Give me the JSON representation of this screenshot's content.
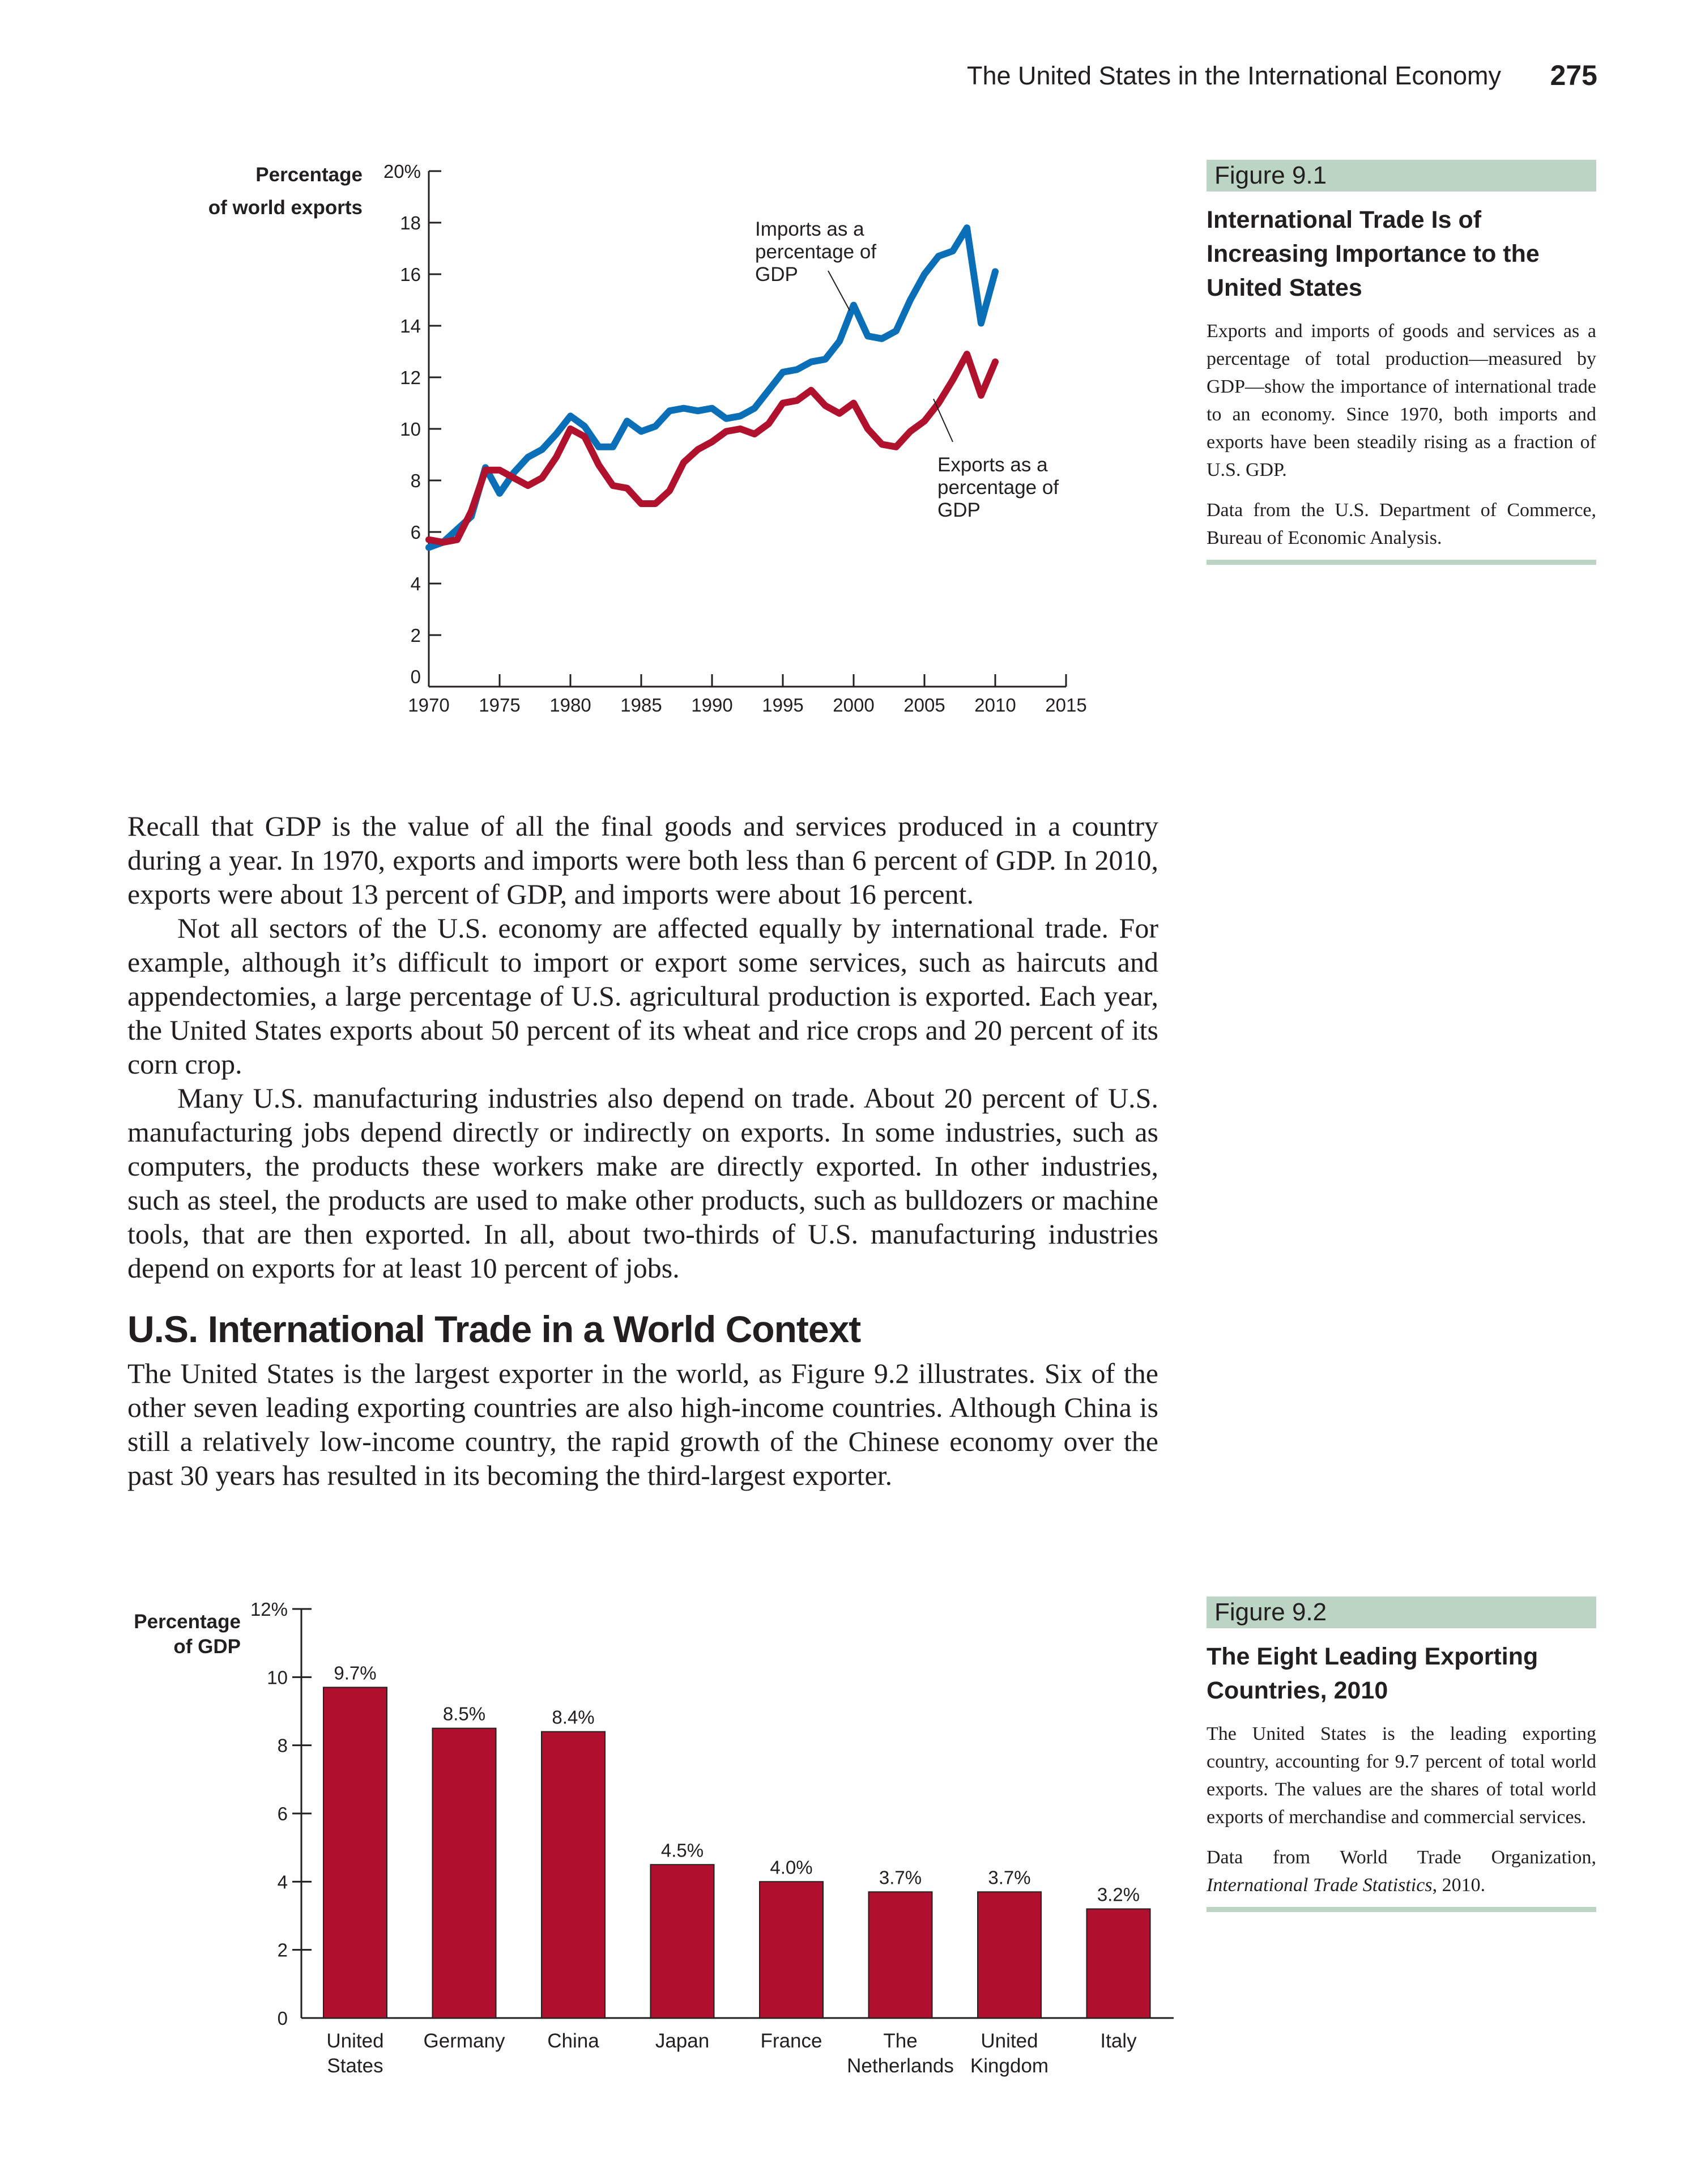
{
  "header": {
    "running_title": "The United States in the International Economy",
    "page_number": "275"
  },
  "figure_9_1": {
    "tag": "Figure 9.1",
    "title": "International Trade Is of Increasing Importance to the United States",
    "text": "Exports and imports of goods and services as a percentage of total production—measured by GDP—show the importance of international trade to an economy. Since 1970, both imports and exports have been steadily rising as a fraction of U.S. GDP.",
    "source": "Data from the U.S. Department of Commerce, Bureau of Economic Analysis.",
    "ylabel_line1": "Percentage",
    "ylabel_line2": "of world exports",
    "imports_label": [
      "Imports as a",
      "percentage of",
      "GDP"
    ],
    "exports_label": [
      "Exports as a",
      "percentage of",
      "GDP"
    ]
  },
  "figure_9_2": {
    "tag": "Figure 9.2",
    "title": "The Eight Leading Exporting Countries, 2010",
    "text": "The United States is the leading exporting country, accounting for 9.7 percent of total world exports. The values are the shares of total world exports of merchandise and commercial services.",
    "source_prefix": "Data from World Trade Organization, ",
    "source_italic": "International Trade Statistics",
    "source_suffix": ", 2010.",
    "ylabel_line1": "Percentage",
    "ylabel_line2": "of GDP"
  },
  "body": {
    "p1": "Recall that GDP is the value of all the final goods and services produced in a country during a year. In 1970, exports and imports were both less than 6 percent of GDP. In 2010, exports were about 13 percent of GDP, and imports were about 16 percent.",
    "p2": "Not all sectors of the U.S. economy are affected equally by international trade. For example, although it’s difficult to import or export some services, such as haircuts and appendectomies, a large percentage of U.S. agricultural production is exported. Each year, the United States exports about 50 percent of its wheat and rice crops and 20 percent of its corn crop.",
    "p3": "Many U.S. manufacturing industries also depend on trade. About 20 percent of U.S. manufacturing jobs depend directly or indirectly on exports. In some industries, such as computers, the products these workers make are directly exported. In other industries, such as steel, the products are used to make other products, such as bulldozers or machine tools, that are then exported. In all, about two-thirds of U.S. manufacturing industries depend on exports for at least 10 percent of jobs.",
    "heading": "U.S. International Trade in a World Context",
    "p4": "The United States is the largest exporter in the world, as Figure 9.2 illustrates. Six of the other seven leading exporting countries are also high-income countries. Although China is still a relatively low-income country, the rapid growth of the Chinese economy over the past 30 years has resulted in its becoming the third-largest exporter."
  },
  "chart_data": [
    {
      "type": "line",
      "xlabel": "",
      "ylabel": "Percentage of world exports",
      "xlim": [
        1970,
        2015
      ],
      "ylim": [
        0,
        20
      ],
      "xticks": [
        1970,
        1975,
        1980,
        1985,
        1990,
        1995,
        2000,
        2005,
        2010,
        2015
      ],
      "yticks": [
        0,
        2,
        4,
        6,
        8,
        10,
        12,
        14,
        16,
        18,
        20
      ],
      "ytick_labels": [
        "0",
        "2",
        "4",
        "6",
        "8",
        "10",
        "12",
        "14",
        "16",
        "18",
        "20%"
      ],
      "grid": false,
      "x": [
        1970,
        1971,
        1972,
        1973,
        1974,
        1975,
        1976,
        1977,
        1978,
        1979,
        1980,
        1981,
        1982,
        1983,
        1984,
        1985,
        1986,
        1987,
        1988,
        1989,
        1990,
        1991,
        1992,
        1993,
        1994,
        1995,
        1996,
        1997,
        1998,
        1999,
        2000,
        2001,
        2002,
        2003,
        2004,
        2005,
        2006,
        2007,
        2008,
        2009,
        2010
      ],
      "series": [
        {
          "name": "Imports as a percentage of GDP",
          "color": "#0a6fb7",
          "values": [
            5.4,
            5.6,
            6.1,
            6.6,
            8.5,
            7.5,
            8.3,
            8.9,
            9.2,
            9.8,
            10.5,
            10.1,
            9.3,
            9.3,
            10.3,
            9.9,
            10.1,
            10.7,
            10.8,
            10.7,
            10.8,
            10.4,
            10.5,
            10.8,
            11.5,
            12.2,
            12.3,
            12.6,
            12.7,
            13.4,
            14.8,
            13.6,
            13.5,
            13.8,
            15.0,
            16.0,
            16.7,
            16.9,
            17.8,
            14.1,
            16.1
          ]
        },
        {
          "name": "Exports as a percentage of GDP",
          "color": "#b0122e",
          "values": [
            5.7,
            5.6,
            5.7,
            6.8,
            8.4,
            8.4,
            8.1,
            7.8,
            8.1,
            8.9,
            10.0,
            9.7,
            8.6,
            7.8,
            7.7,
            7.1,
            7.1,
            7.6,
            8.7,
            9.2,
            9.5,
            9.9,
            10.0,
            9.8,
            10.2,
            11.0,
            11.1,
            11.5,
            10.9,
            10.6,
            11.0,
            10.0,
            9.4,
            9.3,
            9.9,
            10.3,
            11.0,
            11.9,
            12.9,
            11.3,
            12.6
          ]
        }
      ]
    },
    {
      "type": "bar",
      "title": "",
      "xlabel": "",
      "ylabel": "Percentage of GDP",
      "ylim": [
        0,
        12
      ],
      "yticks": [
        0,
        2,
        4,
        6,
        8,
        10,
        12
      ],
      "ytick_labels": [
        "0",
        "2",
        "4",
        "6",
        "8",
        "10",
        "12%"
      ],
      "grid": false,
      "categories": [
        [
          "United",
          "States"
        ],
        [
          "Germany"
        ],
        [
          "China"
        ],
        [
          "Japan"
        ],
        [
          "France"
        ],
        [
          "The",
          "Netherlands"
        ],
        [
          "United",
          "Kingdom"
        ],
        [
          "Italy"
        ]
      ],
      "values": [
        9.7,
        8.5,
        8.4,
        4.5,
        4.0,
        3.7,
        3.7,
        3.2
      ],
      "data_labels": [
        "9.7%",
        "8.5%",
        "8.4%",
        "4.5%",
        "4.0%",
        "3.7%",
        "3.7%",
        "3.2%"
      ],
      "color": "#b0102e"
    }
  ]
}
